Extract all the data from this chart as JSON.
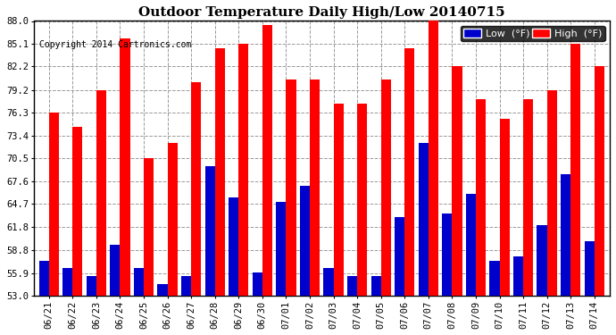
{
  "title": "Outdoor Temperature Daily High/Low 20140715",
  "copyright": "Copyright 2014 Cartronics.com",
  "legend_low_label": "Low  (°F)",
  "legend_high_label": "High  (°F)",
  "dates": [
    "06/21",
    "06/22",
    "06/23",
    "06/24",
    "06/25",
    "06/26",
    "06/27",
    "06/28",
    "06/29",
    "06/30",
    "07/01",
    "07/02",
    "07/03",
    "07/04",
    "07/05",
    "07/06",
    "07/07",
    "07/08",
    "07/09",
    "07/10",
    "07/11",
    "07/12",
    "07/13",
    "07/14"
  ],
  "highs": [
    76.3,
    74.5,
    79.2,
    85.8,
    70.5,
    72.5,
    80.2,
    84.5,
    85.1,
    87.5,
    80.5,
    80.5,
    77.5,
    77.5,
    80.5,
    84.5,
    88.0,
    82.2,
    78.0,
    75.5,
    78.0,
    79.2,
    85.1,
    82.2
  ],
  "lows": [
    57.5,
    56.5,
    55.5,
    59.5,
    56.5,
    54.5,
    55.5,
    69.5,
    65.5,
    56.0,
    65.0,
    67.0,
    56.5,
    55.5,
    55.5,
    63.0,
    72.5,
    63.5,
    66.0,
    57.5,
    58.0,
    62.0,
    68.5,
    60.0
  ],
  "ylim_min": 53.0,
  "ylim_max": 88.0,
  "yticks": [
    53.0,
    55.9,
    58.8,
    61.8,
    64.7,
    67.6,
    70.5,
    73.4,
    76.3,
    79.2,
    82.2,
    85.1,
    88.0
  ],
  "bar_color_high": "#ff0000",
  "bar_color_low": "#0000cc",
  "bg_color": "#ffffff",
  "plot_bg_color": "#ffffff",
  "grid_color": "#999999",
  "title_fontsize": 11,
  "copyright_fontsize": 7,
  "tick_fontsize": 7.5,
  "legend_fontsize": 8,
  "border_color": "#000000"
}
